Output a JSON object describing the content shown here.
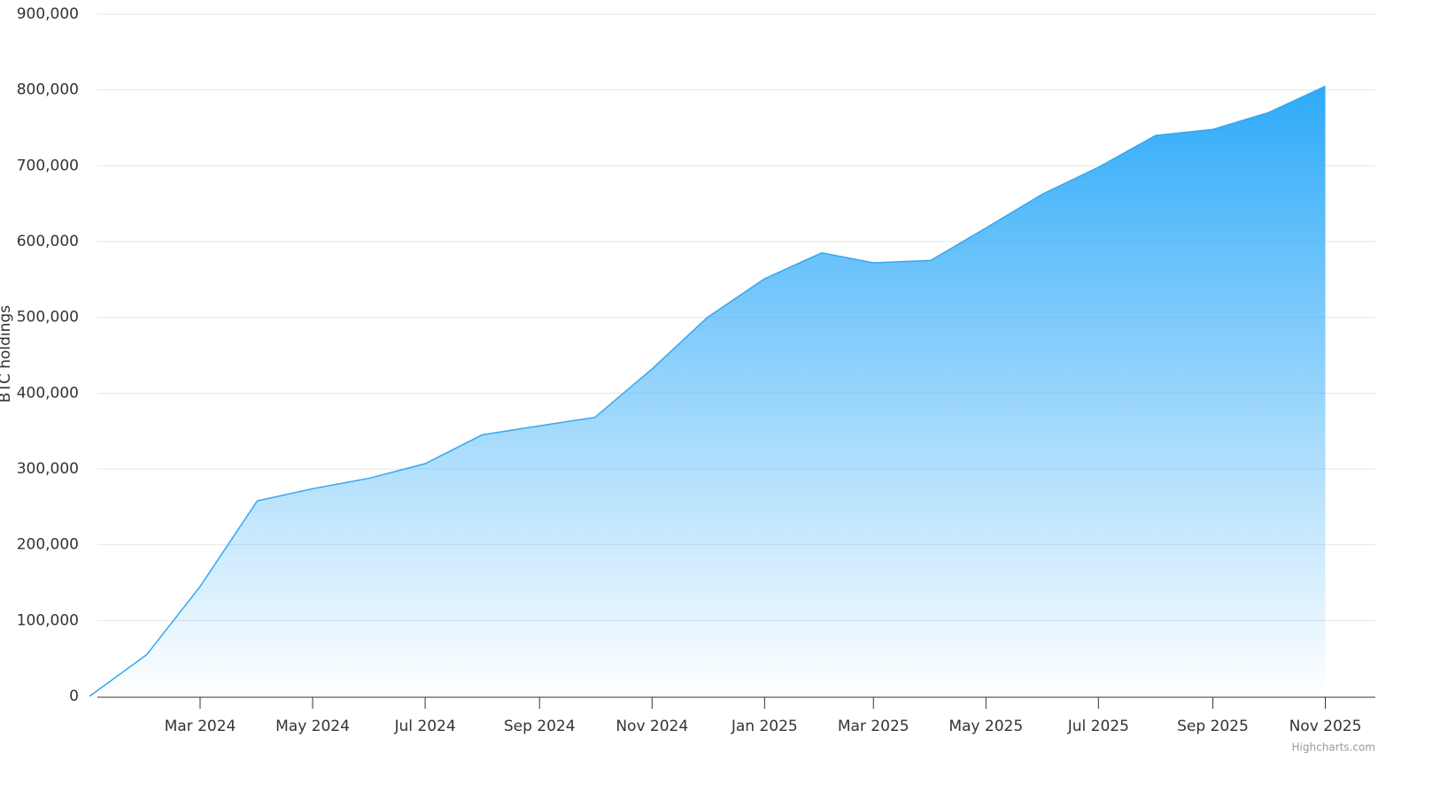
{
  "chart_data": {
    "type": "area",
    "y_label": "BTC holdings",
    "credit": "Highcharts.com",
    "color": "#36a6f0",
    "x": [
      "2024-01",
      "2024-02",
      "2024-03",
      "2024-04",
      "2024-05",
      "2024-06",
      "2024-07",
      "2024-08",
      "2024-09",
      "2024-10",
      "2024-11",
      "2024-12",
      "2025-01",
      "2025-02",
      "2025-03",
      "2025-04",
      "2025-05",
      "2025-06",
      "2025-07",
      "2025-08",
      "2025-09",
      "2025-10",
      "2025-11"
    ],
    "values": [
      0,
      55000,
      145000,
      258000,
      274000,
      288000,
      307000,
      345000,
      357000,
      368000,
      432000,
      500000,
      551000,
      585000,
      572000,
      575000,
      618000,
      663000,
      698000,
      740000,
      748000,
      770000,
      805000
    ],
    "xlim": [
      "2024-01",
      "2025-12"
    ],
    "xticks": [
      {
        "value": "2024-03",
        "label": "Mar 2024"
      },
      {
        "value": "2024-05",
        "label": "May 2024"
      },
      {
        "value": "2024-07",
        "label": "Jul 2024"
      },
      {
        "value": "2024-09",
        "label": "Sep 2024"
      },
      {
        "value": "2024-11",
        "label": "Nov 2024"
      },
      {
        "value": "2025-01",
        "label": "Jan 2025"
      },
      {
        "value": "2025-03",
        "label": "Mar 2025"
      },
      {
        "value": "2025-05",
        "label": "May 2025"
      },
      {
        "value": "2025-07",
        "label": "Jul 2025"
      },
      {
        "value": "2025-09",
        "label": "Sep 2025"
      },
      {
        "value": "2025-11",
        "label": "Nov 2025"
      }
    ],
    "ylim": [
      0,
      900000
    ],
    "yticks": [
      0,
      {
        "value": 100000,
        "label": "100,000"
      },
      {
        "value": 200000,
        "label": "200,000"
      },
      {
        "value": 300000,
        "label": "300,000"
      },
      {
        "value": 400000,
        "label": "400,000"
      },
      {
        "value": 500000,
        "label": "500,000"
      },
      {
        "value": 600000,
        "label": "600,000"
      },
      {
        "value": 700000,
        "label": "700,000"
      },
      {
        "value": 800000,
        "label": "800,000"
      },
      {
        "value": 900000,
        "label": "900,000"
      }
    ],
    "grid": true
  }
}
